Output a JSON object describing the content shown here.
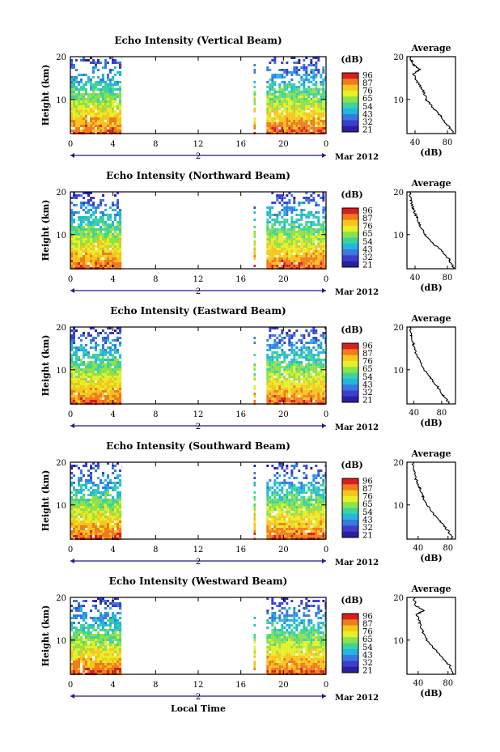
{
  "figure": {
    "xlabel": "Local Time",
    "month_label": "Mar 2012",
    "day_label": "2",
    "colorbar_label": "(dB)",
    "avg_title": "Average",
    "avg_xlabel": "(dB)",
    "ylabel": "Height (km)"
  },
  "colorbar": {
    "ticks": [
      "96",
      "87",
      "76",
      "65",
      "54",
      "43",
      "32",
      "21"
    ],
    "colors": [
      "#d62020",
      "#f27a1f",
      "#f7c51e",
      "#e6ef2a",
      "#8fe14a",
      "#3fd39a",
      "#22b6e0",
      "#3b78e0",
      "#3a3fd0",
      "#2a1f9e"
    ]
  },
  "chart_data": [
    {
      "type": "heatmap",
      "title": "Echo Intensity (Vertical Beam)",
      "xticks": [
        "0",
        "4",
        "8",
        "12",
        "16",
        "20",
        "0"
      ],
      "yticks": [
        "20",
        "10"
      ],
      "xlim": [
        0,
        24
      ],
      "ylim": [
        2,
        20
      ],
      "data_intervals_hours": [
        [
          0,
          4.8
        ],
        [
          17.2,
          17.4
        ],
        [
          18.4,
          24
        ]
      ],
      "value_range_db": [
        21,
        96
      ],
      "average_profile": {
        "xticks": [
          "40",
          "80"
        ],
        "xlim": [
          30,
          90
        ],
        "height": [
          2,
          4,
          6,
          8,
          10,
          12,
          14,
          16,
          17,
          18,
          19,
          20
        ],
        "db": [
          88,
          80,
          72,
          62,
          54,
          50,
          43,
          38,
          46,
          39,
          36,
          34
        ]
      }
    },
    {
      "type": "heatmap",
      "title": "Echo Intensity (Northward Beam)",
      "xticks": [
        "0",
        "4",
        "8",
        "12",
        "16",
        "20",
        "0"
      ],
      "yticks": [
        "20",
        "10"
      ],
      "xlim": [
        0,
        24
      ],
      "ylim": [
        2,
        20
      ],
      "data_intervals_hours": [
        [
          0,
          4.8
        ],
        [
          17.2,
          17.4
        ],
        [
          18.4,
          24
        ]
      ],
      "value_range_db": [
        21,
        96
      ],
      "average_profile": {
        "xticks": [
          "40",
          "80"
        ],
        "xlim": [
          30,
          90
        ],
        "height": [
          2,
          4,
          6,
          8,
          10,
          12,
          14,
          16,
          18,
          20
        ],
        "db": [
          88,
          83,
          74,
          62,
          52,
          46,
          42,
          38,
          35,
          33
        ]
      }
    },
    {
      "type": "heatmap",
      "title": "Echo Intensity (Eastward Beam)",
      "xticks": [
        "0",
        "4",
        "8",
        "12",
        "16",
        "20",
        "0"
      ],
      "yticks": [
        "20",
        "10"
      ],
      "xlim": [
        0,
        24
      ],
      "ylim": [
        2,
        20
      ],
      "data_intervals_hours": [
        [
          0,
          4.8
        ],
        [
          17.2,
          17.4
        ],
        [
          18.4,
          24
        ]
      ],
      "value_range_db": [
        21,
        96
      ],
      "average_profile": {
        "xticks": [
          "40",
          "80"
        ],
        "xlim": [
          30,
          100
        ],
        "height": [
          2,
          4,
          6,
          8,
          10,
          12,
          14,
          16,
          18,
          20
        ],
        "db": [
          92,
          82,
          74,
          64,
          55,
          48,
          43,
          39,
          36,
          34
        ]
      }
    },
    {
      "type": "heatmap",
      "title": "Echo Intensity (Southward Beam)",
      "xticks": [
        "0",
        "4",
        "8",
        "12",
        "16",
        "20",
        "0"
      ],
      "yticks": [
        "20",
        "10"
      ],
      "xlim": [
        0,
        24
      ],
      "ylim": [
        2,
        20
      ],
      "data_intervals_hours": [
        [
          0,
          4.8
        ],
        [
          17.2,
          17.4
        ],
        [
          18.4,
          24
        ]
      ],
      "value_range_db": [
        21,
        96
      ],
      "average_profile": {
        "xticks": [
          "40",
          "80"
        ],
        "xlim": [
          25,
          90
        ],
        "height": [
          2,
          4,
          6,
          8,
          10,
          12,
          14,
          16,
          18,
          20
        ],
        "db": [
          87,
          80,
          70,
          60,
          52,
          46,
          42,
          37,
          34,
          33
        ]
      }
    },
    {
      "type": "heatmap",
      "title": "Echo Intensity (Westward Beam)",
      "xticks": [
        "0",
        "4",
        "8",
        "12",
        "16",
        "20",
        "0"
      ],
      "yticks": [
        "20",
        "10"
      ],
      "xlim": [
        0,
        24
      ],
      "ylim": [
        2,
        20
      ],
      "data_intervals_hours": [
        [
          0,
          4.8
        ],
        [
          17.2,
          17.4
        ],
        [
          18.4,
          24
        ]
      ],
      "value_range_db": [
        21,
        96
      ],
      "average_profile": {
        "xticks": [
          "40",
          "80"
        ],
        "xlim": [
          25,
          90
        ],
        "height": [
          2,
          4,
          6,
          8,
          10,
          12,
          14,
          16,
          17,
          18,
          20
        ],
        "db": [
          88,
          82,
          72,
          62,
          52,
          46,
          42,
          38,
          48,
          37,
          34
        ]
      }
    }
  ]
}
